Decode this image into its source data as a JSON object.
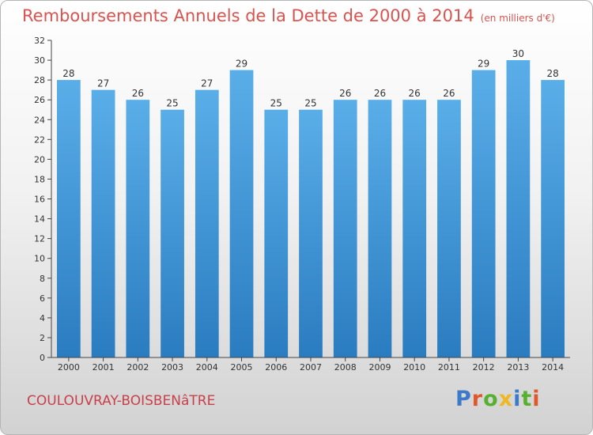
{
  "header": {
    "title": "Remboursements Annuels de la Dette de 2000 à 2014",
    "unit": "(en milliers d'€)"
  },
  "footer": {
    "commune": "COULOUVRAY-BOISBENâTRE",
    "brand": "Proxiti"
  },
  "colors": {
    "title": "#d9534f",
    "bar_top": "#5aaee8",
    "bar_bottom": "#2a7cc0",
    "brand_letters": [
      "#3a7ac8",
      "#e0582a",
      "#58b030",
      "#f0b820",
      "#3a7ac8",
      "#58b030",
      "#e0582a"
    ]
  },
  "chart_data": {
    "type": "bar",
    "title": "Remboursements Annuels de la Dette de 2000 à 2014",
    "subtitle": "(en milliers d'€)",
    "xlabel": "",
    "ylabel": "",
    "categories": [
      "2000",
      "2001",
      "2002",
      "2003",
      "2004",
      "2005",
      "2006",
      "2007",
      "2008",
      "2009",
      "2010",
      "2011",
      "2012",
      "2013",
      "2014"
    ],
    "values": [
      28,
      27,
      26,
      25,
      27,
      29,
      25,
      25,
      26,
      26,
      26,
      26,
      29,
      30,
      28
    ],
    "ylim": [
      0,
      32
    ],
    "yticks": [
      0,
      2,
      4,
      6,
      8,
      10,
      12,
      14,
      16,
      18,
      20,
      22,
      24,
      26,
      28,
      30,
      32
    ],
    "grid": false,
    "legend": "none",
    "data_labels": true
  }
}
